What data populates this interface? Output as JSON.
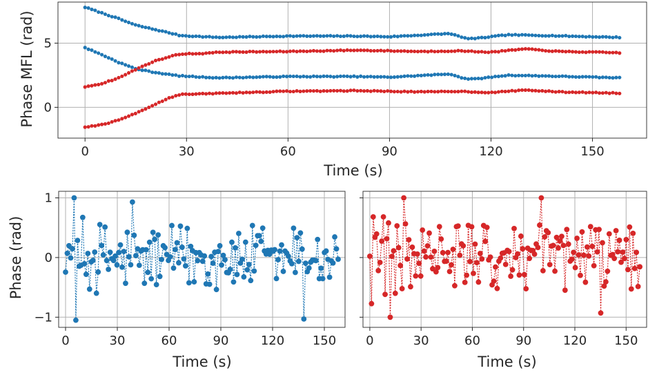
{
  "colors": {
    "blue": "#1f77b4",
    "red": "#d62728"
  },
  "chart_data": [
    {
      "type": "scatter",
      "panel": "top",
      "xlabel": "Time (s)",
      "ylabel": "Phase MFL (rad)",
      "xlim": [
        -8,
        166
      ],
      "ylim": [
        -2.4,
        8.2
      ],
      "xticks": [
        0,
        30,
        60,
        90,
        120,
        150
      ],
      "yticks": [
        0,
        5
      ],
      "grid": true,
      "x_range": [
        0,
        158
      ],
      "n_points": 160,
      "series": [
        {
          "color": "blue",
          "keyframes": [
            [
              0,
              7.8
            ],
            [
              5,
              7.35
            ],
            [
              10,
              6.9
            ],
            [
              15,
              6.4
            ],
            [
              20,
              6.1
            ],
            [
              25,
              5.8
            ],
            [
              28,
              5.6
            ],
            [
              35,
              5.5
            ],
            [
              40,
              5.45
            ],
            [
              60,
              5.55
            ],
            [
              80,
              5.55
            ],
            [
              90,
              5.5
            ],
            [
              108,
              5.75
            ],
            [
              112,
              5.4
            ],
            [
              115,
              5.35
            ],
            [
              120,
              5.5
            ],
            [
              125,
              5.65
            ],
            [
              135,
              5.6
            ],
            [
              150,
              5.5
            ],
            [
              158,
              5.45
            ]
          ]
        },
        {
          "color": "blue",
          "keyframes": [
            [
              0,
              4.65
            ],
            [
              5,
              4.1
            ],
            [
              10,
              3.5
            ],
            [
              15,
              3.0
            ],
            [
              20,
              2.75
            ],
            [
              25,
              2.55
            ],
            [
              28,
              2.45
            ],
            [
              35,
              2.35
            ],
            [
              40,
              2.3
            ],
            [
              60,
              2.4
            ],
            [
              80,
              2.4
            ],
            [
              90,
              2.35
            ],
            [
              108,
              2.6
            ],
            [
              112,
              2.25
            ],
            [
              115,
              2.2
            ],
            [
              120,
              2.35
            ],
            [
              125,
              2.5
            ],
            [
              135,
              2.45
            ],
            [
              150,
              2.35
            ],
            [
              158,
              2.3
            ]
          ]
        },
        {
          "color": "red",
          "keyframes": [
            [
              0,
              1.6
            ],
            [
              5,
              1.85
            ],
            [
              10,
              2.3
            ],
            [
              15,
              2.95
            ],
            [
              20,
              3.55
            ],
            [
              25,
              3.95
            ],
            [
              28,
              4.15
            ],
            [
              35,
              4.2
            ],
            [
              40,
              4.3
            ],
            [
              60,
              4.35
            ],
            [
              80,
              4.45
            ],
            [
              100,
              4.35
            ],
            [
              110,
              4.4
            ],
            [
              120,
              4.3
            ],
            [
              130,
              4.55
            ],
            [
              140,
              4.35
            ],
            [
              150,
              4.3
            ],
            [
              158,
              4.25
            ]
          ]
        },
        {
          "color": "red",
          "keyframes": [
            [
              0,
              -1.55
            ],
            [
              5,
              -1.35
            ],
            [
              10,
              -1.0
            ],
            [
              15,
              -0.45
            ],
            [
              20,
              0.15
            ],
            [
              25,
              0.75
            ],
            [
              28,
              1.0
            ],
            [
              35,
              1.05
            ],
            [
              40,
              1.1
            ],
            [
              60,
              1.25
            ],
            [
              80,
              1.3
            ],
            [
              100,
              1.2
            ],
            [
              110,
              1.25
            ],
            [
              120,
              1.15
            ],
            [
              130,
              1.35
            ],
            [
              140,
              1.2
            ],
            [
              150,
              1.15
            ],
            [
              158,
              1.1
            ]
          ]
        }
      ]
    },
    {
      "type": "scatter",
      "panel": "bottom-left",
      "style": "dotted-stem-markers",
      "color": "blue",
      "xlabel": "Time (s)",
      "ylabel": "Phase (rad)",
      "xlim": [
        -4,
        162
      ],
      "ylim": [
        -1.17,
        1.11
      ],
      "xticks": [
        0,
        30,
        60,
        90,
        120,
        150
      ],
      "yticks": [
        -1,
        0,
        1
      ],
      "grid": true,
      "x_range": [
        0,
        158
      ],
      "n_points": 160,
      "values_approx_range": [
        -1.05,
        1.0
      ],
      "notable_points": [
        [
          5,
          1.0
        ],
        [
          6,
          -1.05
        ],
        [
          39,
          0.93
        ],
        [
          138,
          -1.03
        ]
      ]
    },
    {
      "type": "scatter",
      "panel": "bottom-right",
      "style": "dotted-stem-markers",
      "color": "red",
      "xlabel": "Time (s)",
      "ylabel": "",
      "xlim": [
        -4,
        162
      ],
      "ylim": [
        -1.17,
        1.11
      ],
      "xticks": [
        0,
        30,
        60,
        90,
        120,
        150
      ],
      "yticks": [
        -1,
        0,
        1
      ],
      "grid": true,
      "x_range": [
        0,
        158
      ],
      "n_points": 160,
      "values_approx_range": [
        -1.0,
        1.0
      ],
      "notable_points": [
        [
          12,
          -1.0
        ],
        [
          20,
          1.0
        ],
        [
          100,
          1.0
        ],
        [
          135,
          -0.93
        ]
      ]
    }
  ]
}
